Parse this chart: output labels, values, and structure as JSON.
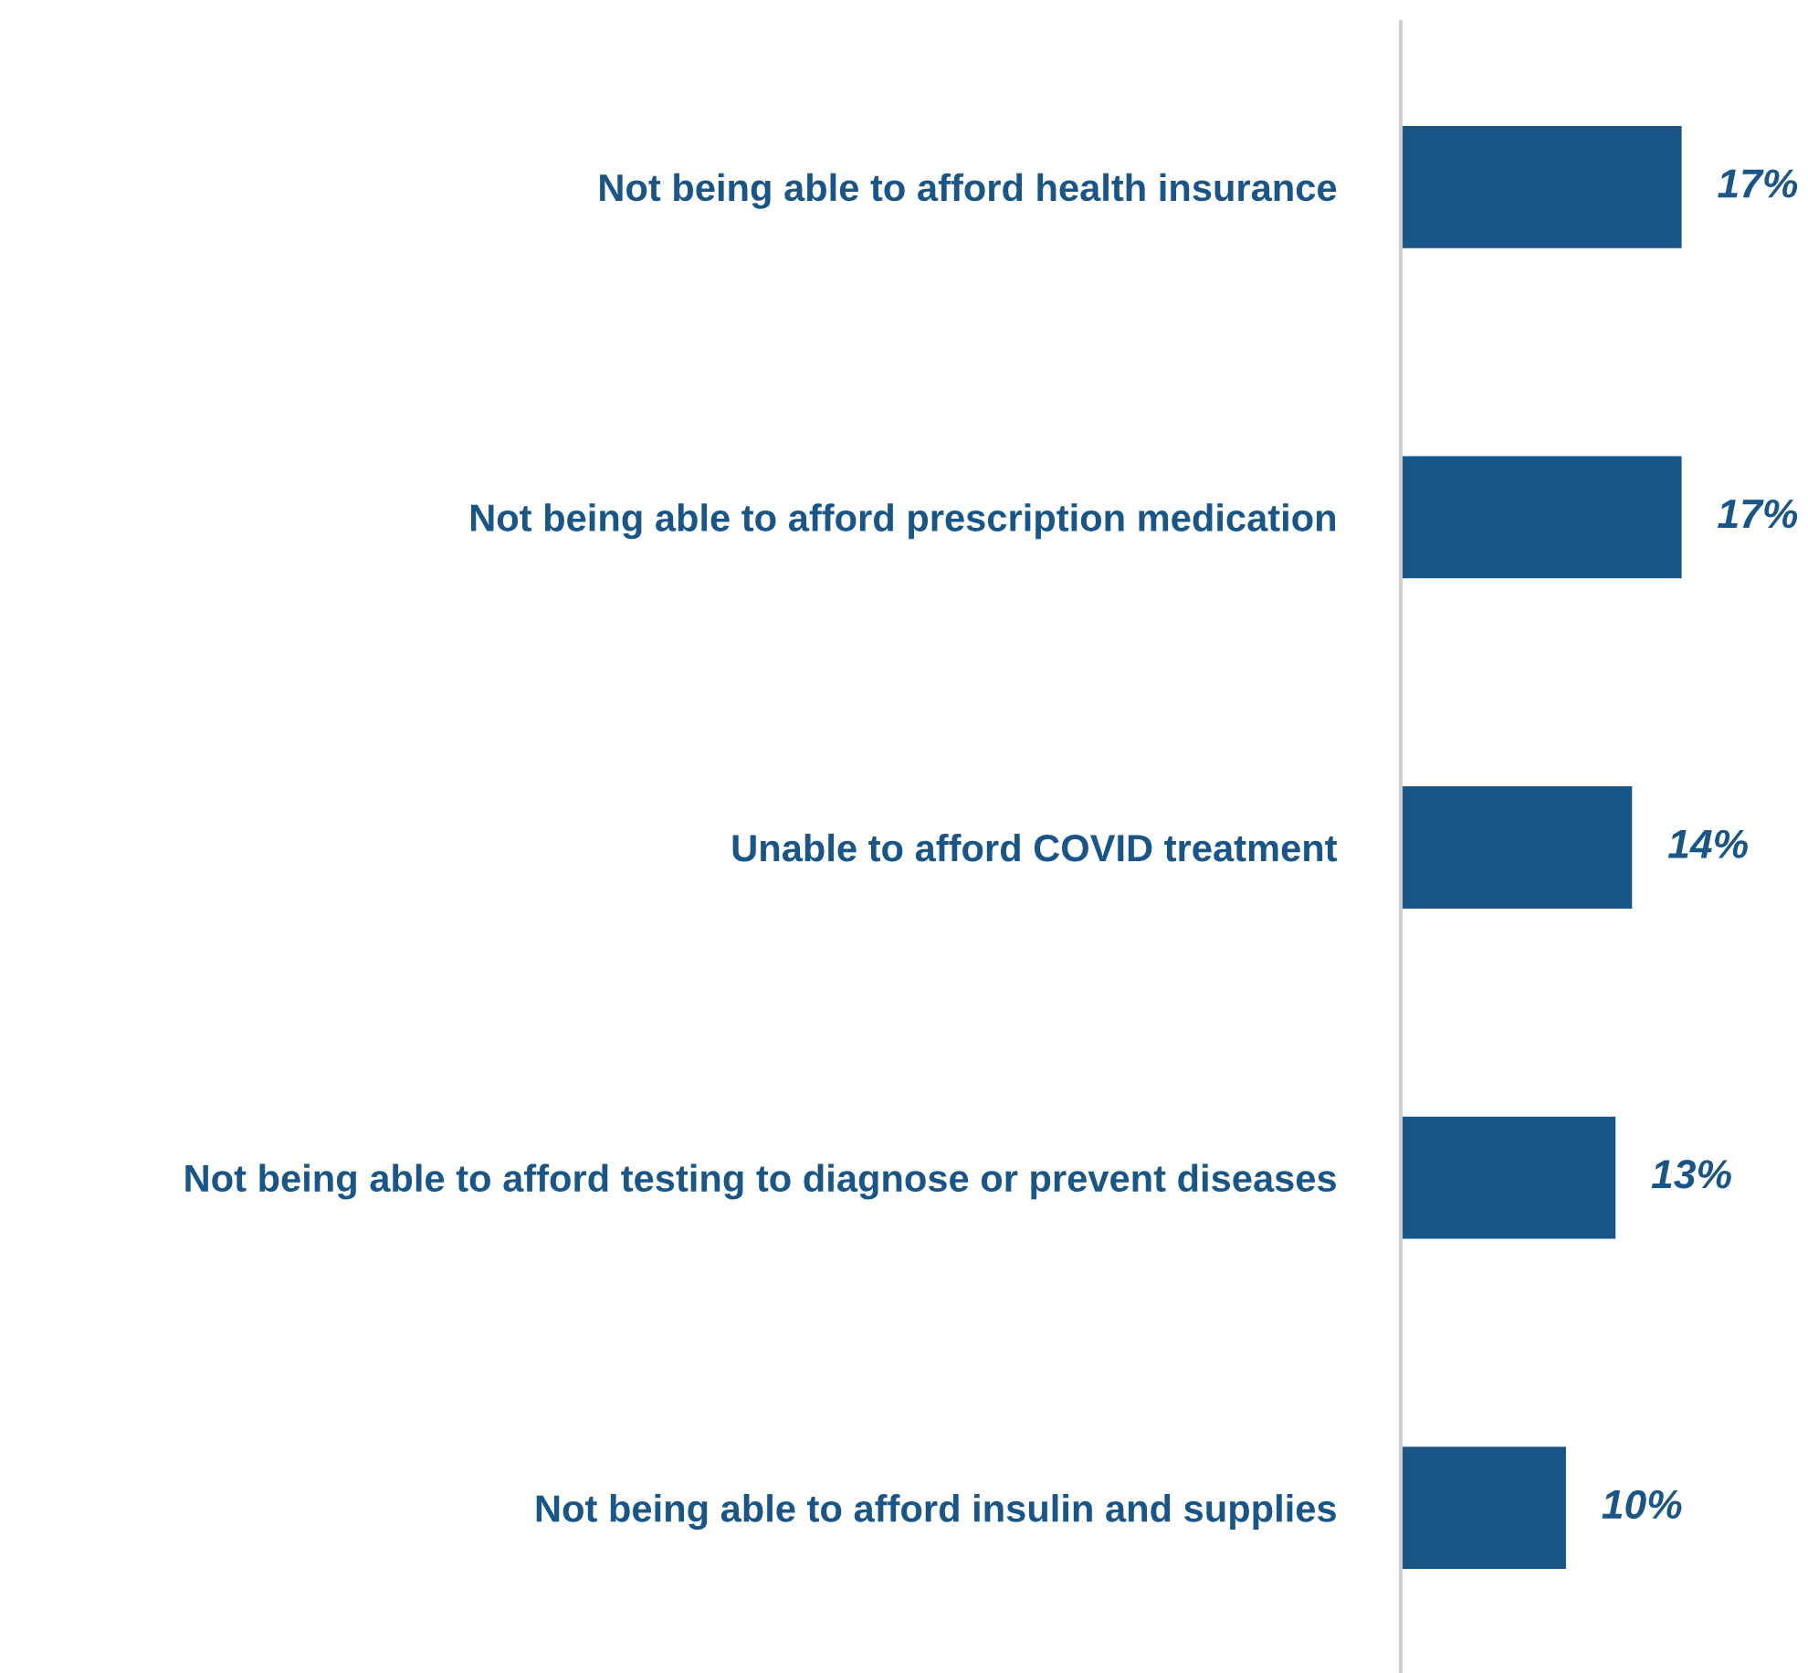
{
  "chart_data": {
    "type": "bar",
    "orientation": "horizontal",
    "categories": [
      "Not being able to afford health insurance",
      "Not being able to afford prescription medication",
      "Unable to afford COVID treatment",
      "Not being able to afford testing to diagnose or prevent diseases",
      "Not being able to afford insulin and supplies"
    ],
    "values": [
      17,
      17,
      14,
      13,
      10
    ],
    "value_labels": [
      "17%",
      "17%",
      "14%",
      "13%",
      "10%"
    ],
    "color": "#1a5587",
    "grid": false,
    "legend": false
  }
}
